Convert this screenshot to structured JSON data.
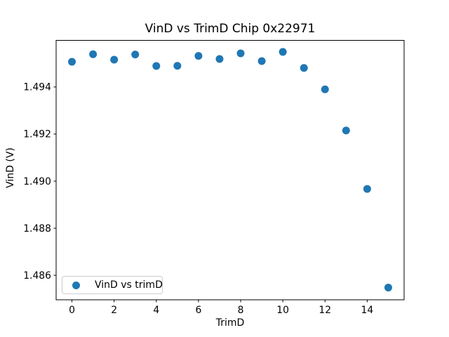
{
  "chart_data": {
    "type": "scatter",
    "title": "VinD vs TrimD Chip 0x22971",
    "xlabel": "TrimD",
    "ylabel": "VinD (V)",
    "series": [
      {
        "name": "VinD vs trimD",
        "color": "#1f77b4",
        "x": [
          0,
          1,
          2,
          3,
          4,
          5,
          6,
          7,
          8,
          9,
          10,
          11,
          12,
          13,
          14,
          15
        ],
        "y": [
          1.49507,
          1.49539,
          1.49516,
          1.49538,
          1.49489,
          1.4949,
          1.49532,
          1.49519,
          1.49543,
          1.4951,
          1.49549,
          1.49481,
          1.4939,
          1.49215,
          1.48967,
          1.48548
        ]
      }
    ],
    "xlim": [
      -0.75,
      15.75
    ],
    "ylim": [
      1.48496,
      1.49598
    ],
    "xticks": {
      "values": [
        0,
        2,
        4,
        6,
        8,
        10,
        12,
        14
      ],
      "labels": [
        "0",
        "2",
        "4",
        "6",
        "8",
        "10",
        "12",
        "14"
      ]
    },
    "yticks": {
      "values": [
        1.486,
        1.488,
        1.49,
        1.492,
        1.494
      ],
      "labels": [
        "1.486",
        "1.488",
        "1.490",
        "1.492",
        "1.494"
      ]
    },
    "grid": false,
    "legend": {
      "position": "lower left",
      "entries": [
        {
          "label": "VinD vs trimD",
          "marker_color": "#1f77b4"
        }
      ]
    },
    "axis_color": "#000000"
  }
}
